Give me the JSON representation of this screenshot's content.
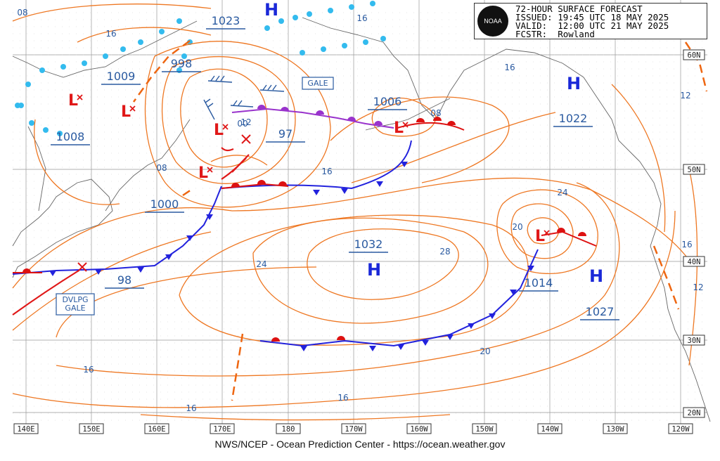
{
  "header": {
    "title": "72-HOUR SURFACE FORECAST",
    "issued": "ISSUED: 19:45 UTC 18 MAY 2025",
    "valid": "VALID:  12:00 UTC 21 MAY 2025",
    "forecaster": "FCSTR:  Rowland",
    "logo_text": "NOAA"
  },
  "footer": "NWS/NCEP - Ocean Prediction Center - https://ocean.weather.gov",
  "colors": {
    "isobar": "#ee7722",
    "coast": "#555555",
    "grid": "#999999",
    "high": "#1a28d8",
    "low": "#e01818",
    "cold_front": "#2222dd",
    "warm_front": "#dd1111",
    "occluded_front": "#9933cc",
    "label": "#2a5aa0",
    "ice": "#33bbee"
  },
  "longitude_labels": [
    "140E",
    "150E",
    "160E",
    "170E",
    "180",
    "170W",
    "160W",
    "150W",
    "140W",
    "130W",
    "120W"
  ],
  "latitude_labels": [
    "60N",
    "50N",
    "40N",
    "30N",
    "20N"
  ],
  "pressure_centers": [
    {
      "label": "1023",
      "type": "high"
    },
    {
      "label": "1009",
      "type": "low"
    },
    {
      "label": "998",
      "type": "low"
    },
    {
      "label": "1008",
      "type": "low"
    },
    {
      "label": "97",
      "type": "low"
    },
    {
      "label": "1006",
      "type": "low"
    },
    {
      "label": "1000",
      "type": "low"
    },
    {
      "label": "1022",
      "type": "high"
    },
    {
      "label": "1032",
      "type": "high"
    },
    {
      "label": "98",
      "type": "low"
    },
    {
      "label": "1014",
      "type": "low"
    },
    {
      "label": "1027",
      "type": "high"
    }
  ],
  "isobar_labels": [
    "08",
    "16",
    "16",
    "16",
    "16",
    "08",
    "08",
    "12",
    "16",
    "24",
    "20",
    "28",
    "24",
    "16",
    "12",
    "20",
    "16",
    "16",
    "12"
  ],
  "low_center_value": "00",
  "warnings": [
    "GALE"
  ],
  "dvlpg_gale": [
    "DVLPG",
    "GALE"
  ],
  "symbols": {
    "high": "H",
    "low": "L"
  }
}
